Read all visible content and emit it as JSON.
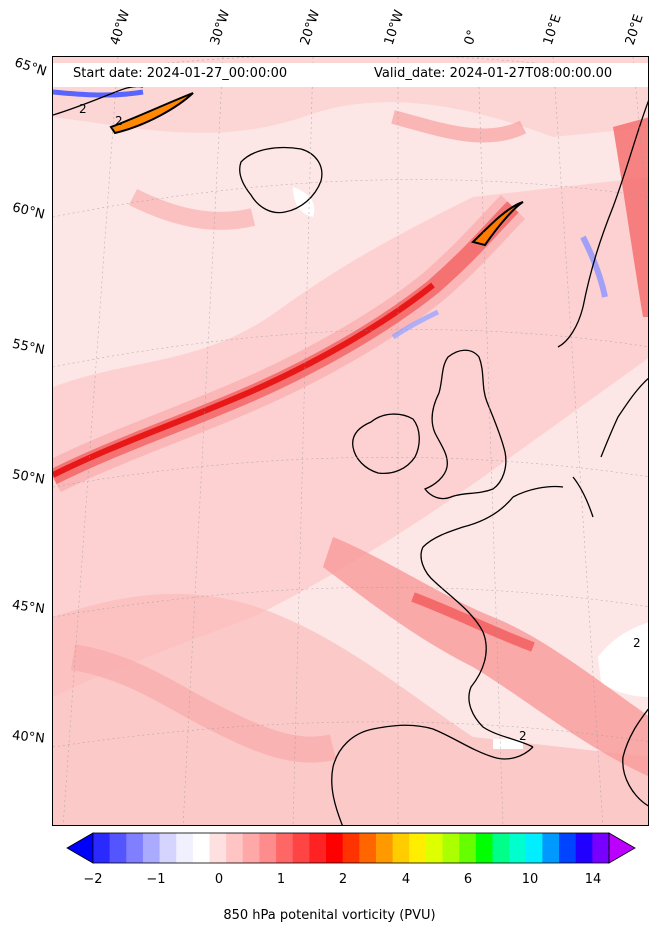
{
  "header": {
    "start_date": "Start date: 2024-01-27_00:00:00",
    "valid_date": "Valid_date: 2024-01-27T08:00:00.00"
  },
  "longitude_labels": [
    "40°W",
    "30°W",
    "20°W",
    "10°W",
    "0°",
    "10°E",
    "20°E"
  ],
  "latitude_labels": [
    "65°N",
    "60°N",
    "55°N",
    "50°N",
    "45°N",
    "40°N"
  ],
  "contour_labels": [
    "2",
    "2",
    "2",
    "2"
  ],
  "colorbar": {
    "label": "850 hPa potenital vorticity (PVU)",
    "tick_labels": [
      "−2",
      "−1",
      "0",
      "1",
      "2",
      "4",
      "6",
      "10",
      "14"
    ],
    "colors": [
      "#0000ff",
      "#2a2aff",
      "#5555ff",
      "#7f7fff",
      "#aaaaff",
      "#d4d4ff",
      "#f0f0ff",
      "#ffffff",
      "#ffe0e0",
      "#ffc4c4",
      "#ffa8a8",
      "#ff8c8c",
      "#ff6666",
      "#ff4444",
      "#ff2222",
      "#ff0000",
      "#ff3300",
      "#ff6600",
      "#ff9900",
      "#ffcc00",
      "#ffee00",
      "#ddff00",
      "#aaff00",
      "#66ff00",
      "#00ff00",
      "#00ff88",
      "#00ffcc",
      "#00eeff",
      "#0099ff",
      "#0044ff",
      "#2200ff",
      "#7700ff",
      "#bb00ff"
    ]
  }
}
